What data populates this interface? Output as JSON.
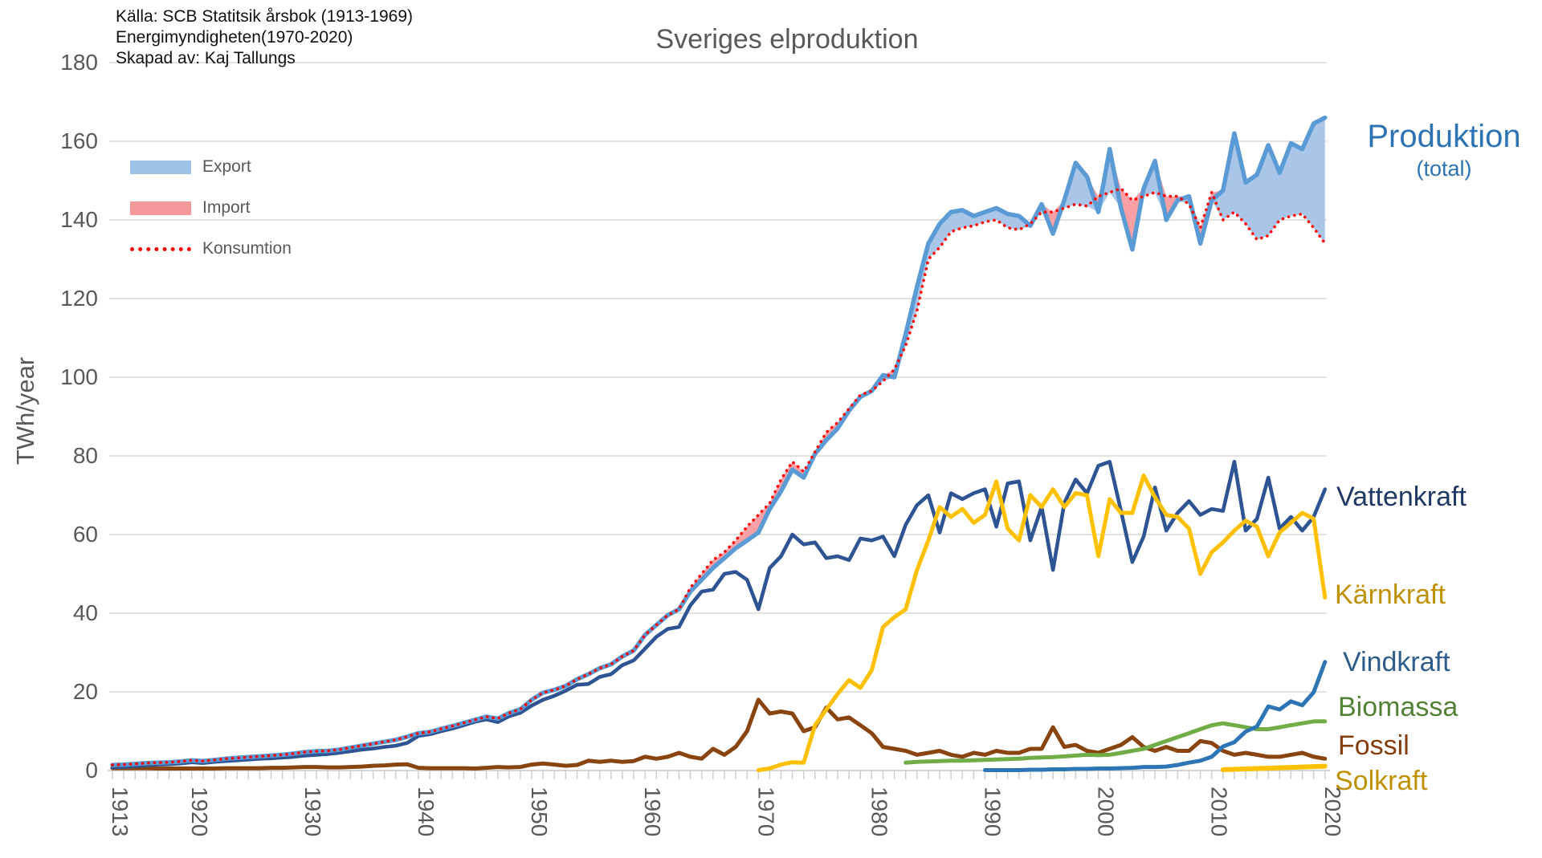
{
  "header": {
    "title": "Sveriges elproduktion",
    "source_lines": [
      "Källa: SCB Statitsik årsbok (1913-1969)",
      "Energimyndigheten(1970-2020)",
      "Skapad av: Kaj Tallungs"
    ]
  },
  "legend": {
    "items": [
      {
        "label": "Export",
        "type": "fill",
        "color": "#9DC3E6"
      },
      {
        "label": "Import",
        "type": "fill",
        "color": "#F4979B"
      },
      {
        "label": "Konsumtion",
        "type": "dotted",
        "color": "#FF0000"
      }
    ]
  },
  "series_labels": {
    "produktion": {
      "text": "Produktion",
      "sub": "(total)",
      "color": "#2E74B5"
    },
    "vattenkraft": {
      "text": "Vattenkraft",
      "color": "#1F3864"
    },
    "karnkraft": {
      "text": "Kärnkraft",
      "color": "#BF9000"
    },
    "vindkraft": {
      "text": "Vindkraft",
      "color": "#2E5D8C"
    },
    "biomassa": {
      "text": "Biomassa",
      "color": "#538135"
    },
    "fossil": {
      "text": "Fossil",
      "color": "#843C0C"
    },
    "solkraft": {
      "text": "Solkraft",
      "color": "#BF9000"
    }
  },
  "chart_data": {
    "type": "line",
    "title": "Sveriges elproduktion",
    "ylabel": "TWh/year",
    "ylim": [
      0,
      180
    ],
    "yticks": [
      0,
      20,
      40,
      60,
      80,
      100,
      120,
      140,
      160,
      180
    ],
    "xlim": [
      1913,
      2020
    ],
    "xticks": [
      1913,
      1920,
      1930,
      1940,
      1950,
      1960,
      1970,
      1980,
      1990,
      2000,
      2010,
      2020
    ],
    "grid": "horizontal",
    "legend_position": "upper-left",
    "fills": {
      "export": {
        "rule": "production above konsumtion",
        "color": "#A9C6E8"
      },
      "import": {
        "rule": "konsumtion above production",
        "color": "#F8A0A5"
      }
    },
    "series": [
      {
        "name": "Produktion (total)",
        "color": "#5B9BD5",
        "width": 5.5,
        "start_year": 1913,
        "values": [
          1.4,
          1.5,
          1.7,
          1.9,
          2.0,
          2.1,
          2.3,
          2.6,
          2.4,
          2.7,
          3.0,
          3.2,
          3.4,
          3.6,
          3.8,
          4.0,
          4.3,
          4.7,
          4.9,
          5.0,
          5.3,
          5.8,
          6.3,
          6.8,
          7.3,
          7.8,
          8.6,
          9.5,
          9.8,
          10.6,
          11.3,
          12.1,
          12.9,
          13.7,
          13.2,
          14.6,
          15.6,
          18.0,
          19.8,
          20.5,
          21.5,
          23.2,
          24.5,
          26.0,
          27.0,
          29.0,
          30.5,
          34.5,
          37.0,
          39.5,
          41.0,
          45.5,
          48.5,
          51.5,
          54.0,
          56.5,
          58.5,
          60.5,
          66.5,
          71.0,
          76.5,
          74.5,
          80.5,
          84.0,
          87.0,
          91.5,
          95.0,
          96.5,
          100.5,
          100.0,
          111.0,
          123.0,
          134.0,
          139.0,
          142.0,
          142.5,
          141.0,
          142.0,
          143.0,
          141.5,
          141.0,
          138.5,
          144.0,
          136.5,
          145.0,
          154.5,
          151.0,
          142.0,
          158.0,
          143.0,
          132.5,
          148.0,
          155.0,
          140.0,
          145.0,
          146.0,
          134.0,
          145.0,
          147.5,
          162.0,
          149.5,
          151.5,
          159.0,
          152.0,
          159.5,
          158.0,
          164.5,
          166.0
        ]
      },
      {
        "name": "Konsumtion",
        "color": "#FF0000",
        "style": "dotted",
        "width": 3.6,
        "start_year": 1913,
        "values": [
          1.4,
          1.5,
          1.7,
          1.9,
          2.0,
          2.1,
          2.3,
          2.6,
          2.4,
          2.7,
          3.0,
          3.2,
          3.4,
          3.6,
          3.8,
          4.0,
          4.3,
          4.7,
          4.9,
          5.0,
          5.3,
          5.8,
          6.3,
          6.8,
          7.3,
          7.8,
          8.6,
          9.5,
          9.8,
          10.6,
          11.3,
          12.1,
          12.9,
          13.7,
          13.2,
          14.6,
          15.6,
          18.0,
          19.8,
          20.5,
          21.5,
          23.2,
          24.5,
          26.0,
          27.0,
          29.0,
          30.5,
          34.5,
          37.0,
          39.5,
          41.0,
          46.5,
          50.0,
          53.5,
          55.5,
          58.5,
          62.0,
          65.0,
          68.0,
          74.0,
          78.5,
          76.0,
          81.0,
          86.0,
          88.5,
          92.0,
          95.5,
          96.5,
          99.0,
          102.0,
          108.0,
          117.0,
          130.0,
          133.0,
          137.0,
          138.0,
          138.5,
          139.5,
          140.0,
          138.0,
          137.5,
          139.0,
          142.0,
          142.0,
          143.0,
          144.0,
          143.5,
          146.0,
          147.0,
          148.0,
          145.0,
          146.0,
          147.0,
          146.0,
          146.0,
          144.0,
          138.0,
          147.0,
          140.0,
          142.0,
          139.0,
          135.0,
          136.0,
          140.0,
          141.0,
          141.5,
          138.0,
          134.0
        ]
      },
      {
        "name": "Vattenkraft",
        "color": "#2E5494",
        "width": 4.6,
        "start_year": 1913,
        "values": [
          0.8,
          0.9,
          1.1,
          1.3,
          1.5,
          1.6,
          1.8,
          2.1,
          1.9,
          2.2,
          2.4,
          2.6,
          2.8,
          3.0,
          3.1,
          3.3,
          3.5,
          3.8,
          4.0,
          4.2,
          4.5,
          4.9,
          5.3,
          5.6,
          6.0,
          6.3,
          7.0,
          8.8,
          9.2,
          10.0,
          10.7,
          11.5,
          12.4,
          13.0,
          12.3,
          13.8,
          14.7,
          16.5,
          18.0,
          19.0,
          20.3,
          21.8,
          22.0,
          23.8,
          24.5,
          26.8,
          28.0,
          31.0,
          34.0,
          36.0,
          36.5,
          42.0,
          45.5,
          46.0,
          50.0,
          50.5,
          48.5,
          41.0,
          51.5,
          54.5,
          60.0,
          57.5,
          58.0,
          54.0,
          54.5,
          53.5,
          59.0,
          58.5,
          59.5,
          54.5,
          62.5,
          67.5,
          70.0,
          60.5,
          70.5,
          69.0,
          70.5,
          71.5,
          62.0,
          73.0,
          73.5,
          58.5,
          67.0,
          51.0,
          68.0,
          74.0,
          70.5,
          77.5,
          78.5,
          66.0,
          53.0,
          59.5,
          72.0,
          61.0,
          65.5,
          68.5,
          65.0,
          66.5,
          66.0,
          78.5,
          61.0,
          64.0,
          74.5,
          61.5,
          64.5,
          61.0,
          64.5,
          71.5
        ]
      },
      {
        "name": "Kärnkraft",
        "color": "#FFC000",
        "width": 5,
        "start_year": 1970,
        "values": [
          0.1,
          0.5,
          1.5,
          2.1,
          2.0,
          11.5,
          15.5,
          19.5,
          23.0,
          21.0,
          25.5,
          36.5,
          39.0,
          41.0,
          51.0,
          58.5,
          67.0,
          64.5,
          66.5,
          63.0,
          65.0,
          73.5,
          61.5,
          58.5,
          70.0,
          67.0,
          71.5,
          67.0,
          70.5,
          70.0,
          54.5,
          69.0,
          65.5,
          65.5,
          75.0,
          69.5,
          65.0,
          64.5,
          61.5,
          50.0,
          55.5,
          58.0,
          61.0,
          63.5,
          62.0,
          54.5,
          60.5,
          63.0,
          65.5,
          64.0,
          44.0
        ]
      },
      {
        "name": "Vindkraft",
        "color": "#2E75B6",
        "width": 5,
        "start_year": 1990,
        "values": [
          0.1,
          0.1,
          0.1,
          0.1,
          0.2,
          0.2,
          0.3,
          0.3,
          0.4,
          0.4,
          0.5,
          0.5,
          0.6,
          0.7,
          0.9,
          0.9,
          1.0,
          1.4,
          2.0,
          2.5,
          3.5,
          6.1,
          7.2,
          9.9,
          11.2,
          16.3,
          15.5,
          17.6,
          16.6,
          19.9,
          27.6
        ]
      },
      {
        "name": "Biomassa",
        "color": "#70AD47",
        "width": 5,
        "start_year": 1983,
        "values": [
          2.0,
          2.2,
          2.3,
          2.4,
          2.5,
          2.5,
          2.6,
          2.7,
          2.8,
          2.9,
          3.0,
          3.2,
          3.3,
          3.4,
          3.6,
          3.8,
          4.0,
          3.9,
          4.0,
          4.5,
          5.0,
          5.5,
          6.5,
          7.5,
          8.5,
          9.5,
          10.5,
          11.5,
          12.0,
          11.5,
          11.0,
          10.5,
          10.5,
          11.0,
          11.5,
          12.0,
          12.5,
          12.5
        ]
      },
      {
        "name": "Fossil",
        "color": "#8A4410",
        "width": 5,
        "start_year": 1913,
        "values": [
          0.6,
          0.6,
          0.6,
          0.6,
          0.5,
          0.5,
          0.5,
          0.5,
          0.5,
          0.5,
          0.6,
          0.6,
          0.6,
          0.6,
          0.7,
          0.7,
          0.8,
          0.9,
          0.9,
          0.8,
          0.8,
          0.9,
          1.0,
          1.2,
          1.3,
          1.5,
          1.6,
          0.7,
          0.6,
          0.6,
          0.6,
          0.6,
          0.5,
          0.7,
          0.9,
          0.8,
          0.9,
          1.5,
          1.8,
          1.5,
          1.2,
          1.4,
          2.5,
          2.2,
          2.5,
          2.2,
          2.4,
          3.5,
          3.0,
          3.5,
          4.5,
          3.5,
          3.0,
          5.5,
          4.0,
          6.0,
          10.0,
          18.0,
          14.5,
          15.0,
          14.5,
          10.0,
          11.0,
          16.0,
          13.0,
          13.5,
          11.5,
          9.5,
          6.0,
          5.5,
          5.0,
          4.0,
          4.5,
          5.0,
          4.0,
          3.5,
          4.5,
          4.0,
          5.0,
          4.5,
          4.5,
          5.5,
          5.5,
          11.0,
          6.0,
          6.5,
          5.0,
          4.5,
          5.5,
          6.5,
          8.5,
          6.0,
          5.0,
          6.0,
          5.0,
          5.0,
          7.5,
          7.0,
          5.0,
          4.0,
          4.5,
          4.0,
          3.5,
          3.5,
          4.0,
          4.5,
          3.5,
          3.0
        ]
      },
      {
        "name": "Solkraft",
        "color": "#FFC000",
        "width": 6,
        "start_year": 2011,
        "values": [
          0.2,
          0.3,
          0.4,
          0.5,
          0.6,
          0.7,
          0.8,
          0.9,
          1.0,
          1.1
        ]
      }
    ]
  }
}
